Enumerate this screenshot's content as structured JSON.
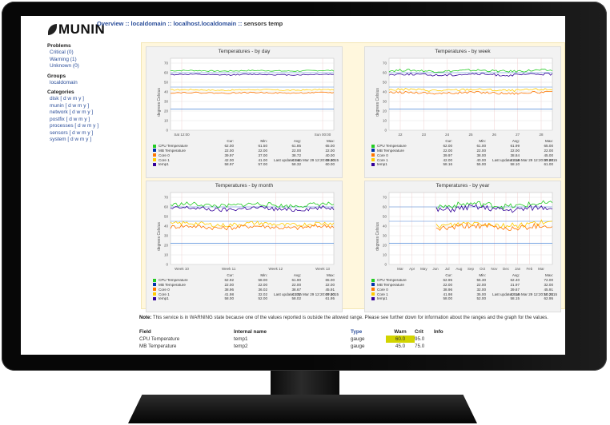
{
  "header": {
    "logo_text": "MUNIN",
    "breadcrumb": {
      "overview": "Overview",
      "sep": "::",
      "domain": "localdomain",
      "host": "localhost.localdomain",
      "current": "sensors temp"
    }
  },
  "sidebar": {
    "problems_title": "Problems",
    "problems": [
      {
        "label": "Critical (0)"
      },
      {
        "label": "Warning (1)"
      },
      {
        "label": "Unknown (0)"
      }
    ],
    "groups_title": "Groups",
    "groups": [
      {
        "label": "localdomain"
      }
    ],
    "categories_title": "Categories",
    "categories": [
      {
        "label": "disk [ d w m y ]"
      },
      {
        "label": "munin [ d w m y ]"
      },
      {
        "label": "network [ d w m y ]"
      },
      {
        "label": "postfix [ d w m y ]"
      },
      {
        "label": "processes [ d w m y ]"
      },
      {
        "label": "sensors [ d w m y ]"
      },
      {
        "label": "system [ d w m y ]"
      }
    ]
  },
  "colors": {
    "cpu": "#22cc22",
    "mb": "#0033aa",
    "core0": "#ff7700",
    "core1": "#ffcc00",
    "temp1": "#330099",
    "hline": "#4a86d8",
    "warn_highlight": "#d2d400",
    "link": "#2b4e9a"
  },
  "graphs": {
    "ylabel": "degrees Celsius",
    "legend_headers": [
      "Cur:",
      "Min:",
      "Avg:",
      "Max:"
    ],
    "y_ticks": [
      "70",
      "60",
      "50",
      "40",
      "30",
      "20",
      "10",
      "0"
    ],
    "day": {
      "title": "Temperatures - by day",
      "x_ticks": [
        "Sat 12:00",
        "Sun 00:00"
      ],
      "rows": [
        {
          "name": "CPU Temperature",
          "cur": "62.00",
          "min": "61.50",
          "avg": "61.85",
          "max": "65.00"
        },
        {
          "name": "MB Temperature",
          "cur": "22.00",
          "min": "22.00",
          "avg": "22.00",
          "max": "22.00"
        },
        {
          "name": "Core 0",
          "cur": "39.97",
          "min": "37.00",
          "avg": "38.72",
          "max": "40.00"
        },
        {
          "name": "Core 1",
          "cur": "42.00",
          "min": "41.00",
          "avg": "41.41",
          "max": "43.00"
        },
        {
          "name": "temp1",
          "cur": "58.97",
          "min": "57.00",
          "avg": "58.32",
          "max": "60.00"
        }
      ],
      "last_update": "Last update:  Sun Mar 29 12:20:09 2015"
    },
    "week": {
      "title": "Temperatures - by week",
      "x_ticks": [
        "22",
        "23",
        "24",
        "25",
        "26",
        "27",
        "28"
      ],
      "rows": [
        {
          "name": "CPU Temperature",
          "cur": "62.00",
          "min": "61.00",
          "avg": "61.99",
          "max": "65.00"
        },
        {
          "name": "MB Temperature",
          "cur": "22.00",
          "min": "22.00",
          "avg": "22.00",
          "max": "22.00"
        },
        {
          "name": "Core 0",
          "cur": "39.97",
          "min": "38.00",
          "avg": "38.84",
          "max": "45.00"
        },
        {
          "name": "Core 1",
          "cur": "42.00",
          "min": "40.00",
          "avg": "41.19",
          "max": "47.00"
        },
        {
          "name": "temp1",
          "cur": "58.16",
          "min": "55.00",
          "avg": "58.10",
          "max": "61.00"
        }
      ],
      "last_update": "Last update:  Sun Mar 29 12:20:09 2015"
    },
    "month": {
      "title": "Temperatures - by month",
      "x_ticks": [
        "Week 10",
        "Week 11",
        "Week 12",
        "Week 13"
      ],
      "rows": [
        {
          "name": "CPU Temperature",
          "cur": "62.92",
          "min": "58.00",
          "avg": "61.90",
          "max": "65.00"
        },
        {
          "name": "MB Temperature",
          "cur": "22.00",
          "min": "22.00",
          "avg": "22.00",
          "max": "22.00"
        },
        {
          "name": "Core 0",
          "cur": "38.96",
          "min": "36.02",
          "avg": "38.67",
          "max": "45.91"
        },
        {
          "name": "Core 1",
          "cur": "41.98",
          "min": "32.02",
          "avg": "41.72",
          "max": "47.00"
        },
        {
          "name": "temp1",
          "cur": "58.00",
          "min": "52.00",
          "avg": "58.02",
          "max": "61.95"
        }
      ],
      "last_update": "Last update:  Sun Mar 29 12:20:09 2015"
    },
    "year": {
      "title": "Temperatures - by year",
      "x_ticks": [
        "Mar",
        "Apr",
        "May",
        "Jun",
        "Jul",
        "Aug",
        "Sep",
        "Oct",
        "Nov",
        "Dec",
        "Jan",
        "Feb",
        "Mar"
      ],
      "rows": [
        {
          "name": "CPU Temperature",
          "cur": "62.95",
          "min": "55.30",
          "avg": "62.40",
          "max": "72.00"
        },
        {
          "name": "MB Temperature",
          "cur": "22.00",
          "min": "22.00",
          "avg": "21.97",
          "max": "32.00"
        },
        {
          "name": "Core 0",
          "cur": "38.96",
          "min": "32.00",
          "avg": "39.67",
          "max": "45.91"
        },
        {
          "name": "Core 1",
          "cur": "41.98",
          "min": "35.00",
          "avg": "42.16",
          "max": "50.21"
        },
        {
          "name": "temp1",
          "cur": "58.00",
          "min": "52.00",
          "avg": "58.15",
          "max": "62.95"
        }
      ],
      "last_update": "Last update:  Sun Mar 29 12:20:10 2015"
    }
  },
  "note": {
    "label": "Note:",
    "text": "This service is in WARNING state because one of the values reported is outside the allowed range. Please see further down for information about the ranges and the graph for the values."
  },
  "field_table": {
    "headers": {
      "field": "Field",
      "internal": "Internal name",
      "type": "Type",
      "warn": "Warn",
      "crit": "Crit",
      "info": "Info"
    },
    "rows": [
      {
        "field": "CPU Temperature",
        "internal": "temp1",
        "type": "gauge",
        "warn": "60.0",
        "crit": "95.0",
        "info": ""
      },
      {
        "field": "MB Temperature",
        "internal": "temp2",
        "type": "gauge",
        "warn": "45.0",
        "crit": "75.0",
        "info": ""
      }
    ]
  }
}
